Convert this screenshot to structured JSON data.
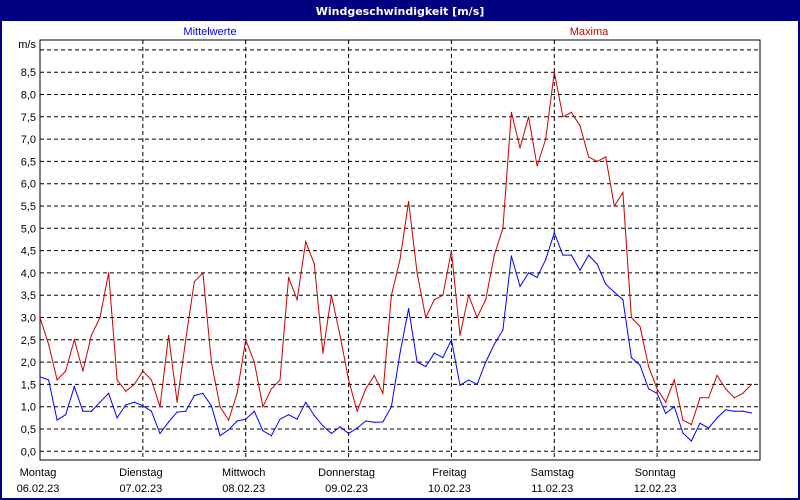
{
  "window": {
    "title": "Windgeschwindigkeit [m/s]"
  },
  "chart_data": {
    "type": "line",
    "title": "Windgeschwindigkeit [m/s]",
    "ylabel": "m/s",
    "ylim": [
      0,
      9.0
    ],
    "yticks": [
      "0,0",
      "0,5",
      "1,0",
      "1,5",
      "2,0",
      "2,5",
      "3,0",
      "3,5",
      "4,0",
      "4,5",
      "5,0",
      "5,5",
      "6,0",
      "6,5",
      "7,0",
      "7,5",
      "8,0",
      "8,5"
    ],
    "ytick_values": [
      0,
      0.5,
      1,
      1.5,
      2,
      2.5,
      3,
      3.5,
      4,
      4.5,
      5,
      5.5,
      6,
      6.5,
      7,
      7.5,
      8,
      8.5
    ],
    "xticks": [
      {
        "day": "Montag",
        "date": "06.02.23"
      },
      {
        "day": "Dienstag",
        "date": "07.02.23"
      },
      {
        "day": "Mittwoch",
        "date": "08.02.23"
      },
      {
        "day": "Donnerstag",
        "date": "09.02.23"
      },
      {
        "day": "Freitag",
        "date": "10.02.23"
      },
      {
        "day": "Samstag",
        "date": "11.02.23"
      },
      {
        "day": "Sonntag",
        "date": "12.02.23"
      }
    ],
    "xlim": [
      "06.02.23 00:00",
      "13.02.23 00:00"
    ],
    "grid": true,
    "legend": "top",
    "x": [
      "06.02.23 00:00",
      "06.02.23 02:00",
      "06.02.23 04:00",
      "06.02.23 06:00",
      "06.02.23 08:00",
      "06.02.23 10:00",
      "06.02.23 12:00",
      "06.02.23 14:00",
      "06.02.23 16:00",
      "06.02.23 18:00",
      "06.02.23 20:00",
      "06.02.23 22:00",
      "07.02.23 00:00",
      "07.02.23 02:00",
      "07.02.23 04:00",
      "07.02.23 06:00",
      "07.02.23 08:00",
      "07.02.23 10:00",
      "07.02.23 12:00",
      "07.02.23 14:00",
      "07.02.23 16:00",
      "07.02.23 18:00",
      "07.02.23 20:00",
      "07.02.23 22:00",
      "08.02.23 00:00",
      "08.02.23 02:00",
      "08.02.23 04:00",
      "08.02.23 06:00",
      "08.02.23 08:00",
      "08.02.23 10:00",
      "08.02.23 12:00",
      "08.02.23 14:00",
      "08.02.23 16:00",
      "08.02.23 18:00",
      "08.02.23 20:00",
      "08.02.23 22:00",
      "09.02.23 00:00",
      "09.02.23 02:00",
      "09.02.23 04:00",
      "09.02.23 06:00",
      "09.02.23 08:00",
      "09.02.23 10:00",
      "09.02.23 12:00",
      "09.02.23 14:00",
      "09.02.23 16:00",
      "09.02.23 18:00",
      "09.02.23 20:00",
      "09.02.23 22:00",
      "10.02.23 00:00",
      "10.02.23 02:00",
      "10.02.23 04:00",
      "10.02.23 06:00",
      "10.02.23 08:00",
      "10.02.23 10:00",
      "10.02.23 12:00",
      "10.02.23 14:00",
      "10.02.23 16:00",
      "10.02.23 18:00",
      "10.02.23 20:00",
      "10.02.23 22:00",
      "11.02.23 00:00",
      "11.02.23 02:00",
      "11.02.23 04:00",
      "11.02.23 06:00",
      "11.02.23 08:00",
      "11.02.23 10:00",
      "11.02.23 12:00",
      "11.02.23 14:00",
      "11.02.23 16:00",
      "11.02.23 18:00",
      "11.02.23 20:00",
      "11.02.23 22:00",
      "12.02.23 00:00",
      "12.02.23 02:00",
      "12.02.23 04:00",
      "12.02.23 06:00",
      "12.02.23 08:00",
      "12.02.23 10:00",
      "12.02.23 12:00",
      "12.02.23 14:00",
      "12.02.23 16:00",
      "12.02.23 18:00",
      "12.02.23 20:00",
      "12.02.23 22:00"
    ],
    "series": [
      {
        "name": "Mittelwerte",
        "color": "#0000ff",
        "values": [
          1.67,
          1.6,
          0.7,
          0.82,
          1.45,
          0.9,
          0.9,
          1.1,
          1.3,
          0.75,
          1.04,
          1.1,
          1.02,
          0.9,
          0.4,
          0.66,
          0.88,
          0.9,
          1.25,
          1.3,
          1.02,
          0.35,
          0.48,
          0.68,
          0.72,
          0.9,
          0.46,
          0.35,
          0.72,
          0.82,
          0.72,
          1.1,
          0.8,
          0.57,
          0.4,
          0.55,
          0.4,
          0.52,
          0.68,
          0.65,
          0.66,
          1.0,
          2.2,
          3.2,
          2.0,
          1.9,
          2.2,
          2.1,
          2.5,
          1.48,
          1.6,
          1.5,
          2.0,
          2.4,
          2.72,
          4.38,
          3.7,
          4.0,
          3.9,
          4.3,
          4.9,
          4.4,
          4.4,
          4.06,
          4.4,
          4.2,
          3.75,
          3.57,
          3.4,
          2.1,
          1.93,
          1.4,
          1.3,
          0.85,
          1.0,
          0.41,
          0.23,
          0.63,
          0.52,
          0.75,
          0.93,
          0.9,
          0.9,
          0.86
        ]
      },
      {
        "name": "Maxima",
        "color": "#cc0000",
        "values": [
          3.0,
          2.4,
          1.6,
          1.8,
          2.5,
          1.8,
          2.6,
          3.0,
          4.0,
          1.6,
          1.35,
          1.5,
          1.8,
          1.6,
          1.0,
          2.6,
          1.1,
          2.5,
          3.8,
          4.0,
          2.0,
          1.0,
          0.7,
          1.3,
          2.5,
          2.0,
          1.0,
          1.4,
          1.6,
          3.9,
          3.4,
          4.7,
          4.2,
          2.2,
          3.5,
          2.6,
          1.6,
          0.9,
          1.4,
          1.7,
          1.3,
          3.5,
          4.3,
          5.6,
          4.0,
          3.0,
          3.4,
          3.5,
          4.5,
          2.6,
          3.5,
          3.0,
          3.4,
          4.4,
          5.0,
          7.6,
          6.8,
          7.5,
          6.4,
          7.0,
          8.5,
          7.5,
          7.6,
          7.3,
          6.6,
          6.5,
          6.6,
          5.5,
          5.8,
          3.0,
          2.8,
          1.9,
          1.4,
          1.1,
          1.6,
          0.7,
          0.6,
          1.2,
          1.2,
          1.7,
          1.4,
          1.2,
          1.3,
          1.5
        ]
      }
    ]
  }
}
